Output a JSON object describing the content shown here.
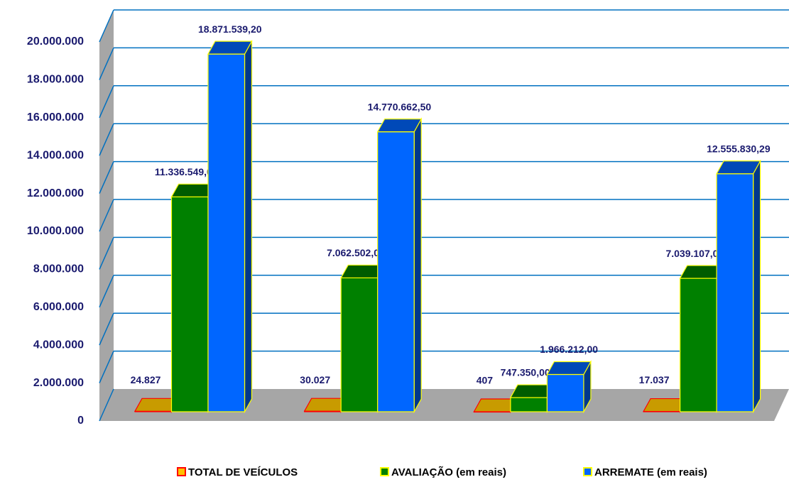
{
  "chart_data": {
    "type": "bar",
    "categories": [
      null,
      null,
      null,
      null
    ],
    "ylim": [
      0,
      20000000
    ],
    "yticks": [
      0,
      {
        "value": 2000000,
        "label": "2.000.000"
      },
      {
        "value": 4000000,
        "label": "4.000.000"
      },
      {
        "value": 6000000,
        "label": "6.000.000"
      },
      {
        "value": 8000000,
        "label": "8.000.000"
      },
      {
        "value": 10000000,
        "label": "10.000.000"
      },
      {
        "value": 12000000,
        "label": "12.000.000"
      },
      {
        "value": 14000000,
        "label": "14.000.000"
      },
      {
        "value": 16000000,
        "label": "16.000.000"
      },
      {
        "value": 18000000,
        "label": "18.000.000"
      },
      {
        "value": 20000000,
        "label": "20.000.000"
      }
    ],
    "grid": true,
    "legend": "bottom",
    "series": [
      {
        "name": "TOTAL DE VEÍCULOS",
        "color": "#c89b00",
        "values": [
          24827,
          30027,
          407,
          17037
        ],
        "value_labels": [
          "24.827",
          "30.027",
          "407",
          "17.037"
        ]
      },
      {
        "name": "AVALIAÇÃO (em reais)",
        "color": "#008000",
        "values": [
          11336549.0,
          7062502.0,
          747350.0,
          7039107.0
        ],
        "value_labels": [
          "11.336.549,00",
          "7.062.502,00",
          "747.350,00",
          "7.039.107,00"
        ]
      },
      {
        "name": "ARREMATE (em reais)",
        "color": "#0066ff",
        "values": [
          18871539.2,
          14770662.5,
          1966212.0,
          12555830.29
        ],
        "value_labels": [
          "18.871.539,20",
          "14.770.662,50",
          "1.966.212,00",
          "12.555.830,29"
        ]
      }
    ]
  }
}
